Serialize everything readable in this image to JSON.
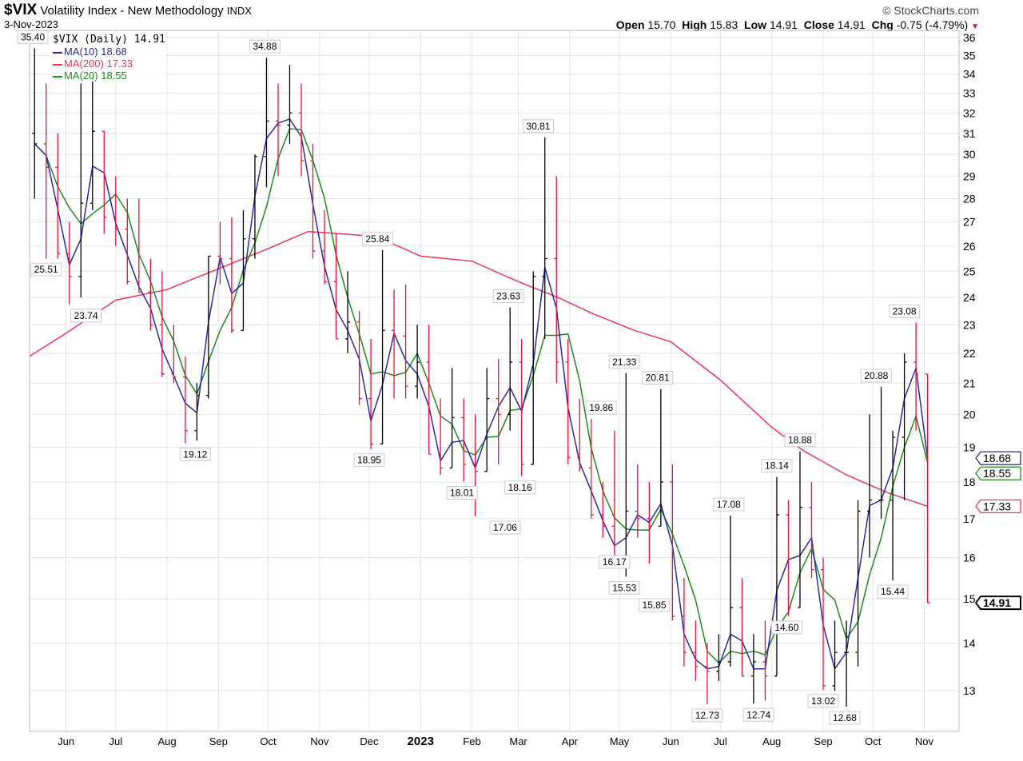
{
  "header": {
    "symbol": "$VIX",
    "name": "Volatility Index - New Methodology",
    "exchange": "INDX",
    "date": "3-Nov-2023",
    "copyright": "© StockCharts.com"
  },
  "quote": {
    "open_label": "Open",
    "open": "15.70",
    "high_label": "High",
    "high": "15.83",
    "low_label": "Low",
    "low": "14.91",
    "close_label": "Close",
    "close": "14.91",
    "chg_label": "Chg",
    "chg": "-0.75 (-4.79%)",
    "direction": "down"
  },
  "legend": {
    "main": "$VIX (Daily) 14.91",
    "ma10": "MA(10) 18.68",
    "ma200": "MA(200) 17.33",
    "ma20": "MA(20) 18.55"
  },
  "colors": {
    "up": "#000000",
    "down": "#e8103e",
    "ma10": "#2a2aa8",
    "ma200": "#f0345a",
    "ma20": "#1e8a1e",
    "grid": "#e4e4e4"
  },
  "chart_data": {
    "type": "ohlc-bar",
    "yscale": "log",
    "ylim": [
      12.2,
      36.4
    ],
    "xlim": [
      "2022-05-10",
      "2023-11-22"
    ],
    "grid": true,
    "yticks": [
      13,
      14,
      15,
      16,
      17,
      18,
      19,
      20,
      21,
      22,
      23,
      24,
      25,
      26,
      27,
      28,
      29,
      30,
      31,
      32,
      33,
      34,
      35,
      36
    ],
    "xticks": [
      {
        "label": "Jun",
        "date": "2022-06-01"
      },
      {
        "label": "Jul",
        "date": "2022-07-01"
      },
      {
        "label": "Aug",
        "date": "2022-08-01"
      },
      {
        "label": "Sep",
        "date": "2022-09-01"
      },
      {
        "label": "Oct",
        "date": "2022-10-01"
      },
      {
        "label": "Nov",
        "date": "2022-11-01"
      },
      {
        "label": "Dec",
        "date": "2022-12-01"
      },
      {
        "label": "2023",
        "date": "2023-01-01",
        "bold": true
      },
      {
        "label": "Feb",
        "date": "2023-02-01"
      },
      {
        "label": "Mar",
        "date": "2023-03-01"
      },
      {
        "label": "Apr",
        "date": "2023-04-01"
      },
      {
        "label": "May",
        "date": "2023-05-01"
      },
      {
        "label": "Jun",
        "date": "2023-06-01"
      },
      {
        "label": "Jul",
        "date": "2023-07-01"
      },
      {
        "label": "Aug",
        "date": "2023-08-01"
      },
      {
        "label": "Sep",
        "date": "2023-09-01"
      },
      {
        "label": "Oct",
        "date": "2023-10-01"
      },
      {
        "label": "Nov",
        "date": "2023-11-01"
      }
    ],
    "bars_columns": [
      "date",
      "open",
      "high",
      "low",
      "close"
    ],
    "bars": [
      [
        "2022-05-13",
        31.0,
        35.4,
        28.0,
        30.5
      ],
      [
        "2022-05-20",
        30.5,
        33.5,
        25.5,
        29.4
      ],
      [
        "2022-05-27",
        29.4,
        31.0,
        25.5,
        25.7
      ],
      [
        "2022-06-03",
        25.7,
        27.0,
        23.74,
        24.8
      ],
      [
        "2022-06-10",
        24.8,
        33.5,
        24.0,
        27.8
      ],
      [
        "2022-06-17",
        27.8,
        34.0,
        27.5,
        31.1
      ],
      [
        "2022-06-24",
        31.1,
        31.0,
        26.5,
        27.2
      ],
      [
        "2022-07-01",
        27.2,
        29.0,
        26.0,
        26.7
      ],
      [
        "2022-07-08",
        26.7,
        28.0,
        24.5,
        24.6
      ],
      [
        "2022-07-15",
        24.6,
        28.0,
        24.2,
        24.2
      ],
      [
        "2022-07-22",
        24.2,
        25.5,
        22.8,
        23.0
      ],
      [
        "2022-07-29",
        23.0,
        25.0,
        21.2,
        21.3
      ],
      [
        "2022-08-05",
        21.3,
        23.0,
        21.0,
        21.2
      ],
      [
        "2022-08-12",
        21.2,
        21.9,
        19.12,
        19.5
      ],
      [
        "2022-08-19",
        19.5,
        21.0,
        19.2,
        20.6
      ],
      [
        "2022-08-26",
        20.6,
        25.6,
        20.5,
        25.6
      ],
      [
        "2022-09-02",
        25.6,
        27.0,
        24.5,
        25.5
      ],
      [
        "2022-09-09",
        25.5,
        27.2,
        22.7,
        22.8
      ],
      [
        "2022-09-16",
        22.8,
        27.5,
        23.0,
        26.3
      ],
      [
        "2022-09-23",
        26.3,
        30.0,
        25.5,
        29.9
      ],
      [
        "2022-09-30",
        29.9,
        34.88,
        28.5,
        31.6
      ],
      [
        "2022-10-07",
        31.6,
        33.5,
        29.0,
        31.4
      ],
      [
        "2022-10-14",
        31.4,
        34.5,
        30.5,
        32.0
      ],
      [
        "2022-10-21",
        32.0,
        33.5,
        29.0,
        29.7
      ],
      [
        "2022-10-28",
        29.7,
        30.5,
        25.5,
        25.8
      ],
      [
        "2022-11-04",
        25.8,
        27.5,
        24.5,
        24.6
      ],
      [
        "2022-11-11",
        24.6,
        26.5,
        22.5,
        22.5
      ],
      [
        "2022-11-18",
        22.5,
        25.0,
        22.0,
        23.1
      ],
      [
        "2022-11-25",
        23.1,
        23.5,
        20.3,
        20.5
      ],
      [
        "2022-12-02",
        20.5,
        22.5,
        18.95,
        19.1
      ],
      [
        "2022-12-09",
        19.1,
        25.84,
        19.5,
        22.8
      ],
      [
        "2022-12-16",
        22.8,
        24.3,
        20.5,
        22.6
      ],
      [
        "2022-12-23",
        22.6,
        24.5,
        20.5,
        20.9
      ],
      [
        "2022-12-30",
        20.9,
        23.0,
        20.5,
        21.7
      ],
      [
        "2023-01-06",
        21.7,
        23.0,
        18.8,
        18.8
      ],
      [
        "2023-01-13",
        18.8,
        20.5,
        18.2,
        18.4
      ],
      [
        "2023-01-20",
        18.4,
        21.5,
        18.5,
        19.9
      ],
      [
        "2023-01-27",
        19.9,
        20.5,
        18.01,
        18.5
      ],
      [
        "2023-02-03",
        18.5,
        20.0,
        17.06,
        18.3
      ],
      [
        "2023-02-10",
        18.3,
        21.5,
        18.5,
        20.5
      ],
      [
        "2023-02-17",
        20.5,
        21.8,
        18.5,
        20.0
      ],
      [
        "2023-02-24",
        20.0,
        23.63,
        19.5,
        21.7
      ],
      [
        "2023-03-03",
        21.7,
        22.5,
        18.16,
        18.5
      ],
      [
        "2023-03-10",
        18.5,
        25.0,
        18.5,
        24.8
      ],
      [
        "2023-03-17",
        24.8,
        30.81,
        22.5,
        25.5
      ],
      [
        "2023-03-24",
        25.5,
        29.0,
        21.0,
        21.7
      ],
      [
        "2023-03-31",
        21.7,
        22.5,
        18.5,
        18.7
      ],
      [
        "2023-04-07",
        18.7,
        20.5,
        18.3,
        18.4
      ],
      [
        "2023-04-14",
        18.4,
        19.86,
        17.0,
        17.1
      ],
      [
        "2023-04-21",
        17.1,
        18.0,
        16.5,
        16.8
      ],
      [
        "2023-04-28",
        16.8,
        19.5,
        16.17,
        15.8
      ],
      [
        "2023-05-05",
        15.8,
        21.33,
        15.53,
        17.2
      ],
      [
        "2023-05-12",
        17.2,
        18.5,
        16.5,
        17.0
      ],
      [
        "2023-05-19",
        17.0,
        18.0,
        15.85,
        16.8
      ],
      [
        "2023-05-26",
        16.8,
        20.81,
        17.0,
        18.0
      ],
      [
        "2023-06-02",
        18.0,
        18.5,
        14.5,
        14.6
      ],
      [
        "2023-06-09",
        14.6,
        15.5,
        13.5,
        13.8
      ],
      [
        "2023-06-16",
        13.8,
        14.5,
        13.2,
        13.5
      ],
      [
        "2023-06-23",
        13.5,
        14.0,
        12.73,
        13.4
      ],
      [
        "2023-06-30",
        13.4,
        14.2,
        13.2,
        13.6
      ],
      [
        "2023-07-07",
        13.6,
        17.08,
        13.5,
        14.8
      ],
      [
        "2023-07-14",
        14.8,
        15.5,
        13.3,
        13.3
      ],
      [
        "2023-07-21",
        13.3,
        14.2,
        12.74,
        13.6
      ],
      [
        "2023-07-28",
        13.6,
        14.5,
        12.8,
        13.3
      ],
      [
        "2023-08-04",
        13.3,
        18.14,
        14.0,
        17.1
      ],
      [
        "2023-08-11",
        17.1,
        17.5,
        14.6,
        14.8
      ],
      [
        "2023-08-18",
        14.8,
        18.88,
        15.0,
        17.3
      ],
      [
        "2023-08-25",
        17.3,
        18.0,
        15.5,
        15.7
      ],
      [
        "2023-09-01",
        15.7,
        16.0,
        13.02,
        13.1
      ],
      [
        "2023-09-08",
        13.1,
        14.5,
        13.0,
        13.8
      ],
      [
        "2023-09-15",
        13.8,
        14.5,
        12.68,
        13.8
      ],
      [
        "2023-09-22",
        13.8,
        17.5,
        13.5,
        17.2
      ],
      [
        "2023-09-29",
        17.2,
        20.0,
        16.0,
        17.5
      ],
      [
        "2023-10-06",
        17.5,
        20.88,
        17.0,
        17.5
      ],
      [
        "2023-10-13",
        17.5,
        19.5,
        15.44,
        19.3
      ],
      [
        "2023-10-20",
        19.3,
        22.0,
        17.5,
        21.7
      ],
      [
        "2023-10-27",
        21.7,
        23.08,
        19.5,
        21.3
      ],
      [
        "2023-11-03",
        21.3,
        20.0,
        14.91,
        14.91
      ]
    ],
    "ma200": [
      [
        "2022-05-10",
        21.9
      ],
      [
        "2022-06-01",
        22.7
      ],
      [
        "2022-07-01",
        23.9
      ],
      [
        "2022-08-01",
        24.3
      ],
      [
        "2022-09-01",
        25.1
      ],
      [
        "2022-10-01",
        25.9
      ],
      [
        "2022-10-25",
        26.6
      ],
      [
        "2022-11-15",
        26.5
      ],
      [
        "2022-12-05",
        26.4
      ],
      [
        "2023-01-01",
        25.6
      ],
      [
        "2023-02-01",
        25.4
      ],
      [
        "2023-03-01",
        24.6
      ],
      [
        "2023-03-25",
        24.0
      ],
      [
        "2023-04-15",
        23.4
      ],
      [
        "2023-05-10",
        22.8
      ],
      [
        "2023-06-01",
        22.4
      ],
      [
        "2023-07-01",
        21.1
      ],
      [
        "2023-08-01",
        19.6
      ],
      [
        "2023-08-20",
        18.9
      ],
      [
        "2023-09-15",
        18.2
      ],
      [
        "2023-10-10",
        17.7
      ],
      [
        "2023-11-03",
        17.33
      ]
    ],
    "ma10_last": 18.68,
    "ma20_last": 18.55,
    "ma200_last": 17.33,
    "close_last": 14.91,
    "annotations": [
      [
        "2022-05-12",
        35.4,
        "high"
      ],
      [
        "2022-05-20",
        25.51,
        "low"
      ],
      [
        "2022-06-13",
        23.74,
        "low"
      ],
      [
        "2022-08-18",
        19.12,
        "low"
      ],
      [
        "2022-09-29",
        34.88,
        "high"
      ],
      [
        "2022-12-06",
        25.84,
        "high"
      ],
      [
        "2022-12-01",
        18.95,
        "low"
      ],
      [
        "2023-01-26",
        18.01,
        "low"
      ],
      [
        "2023-02-21",
        17.06,
        "low"
      ],
      [
        "2023-03-02",
        18.16,
        "low"
      ],
      [
        "2023-03-13",
        30.81,
        "high"
      ],
      [
        "2023-02-23",
        23.63,
        "high"
      ],
      [
        "2023-04-28",
        16.17,
        "low"
      ],
      [
        "2023-05-04",
        15.53,
        "low"
      ],
      [
        "2023-05-04",
        21.33,
        "high"
      ],
      [
        "2023-04-20",
        19.86,
        "high"
      ],
      [
        "2023-05-22",
        15.85,
        "low"
      ],
      [
        "2023-05-24",
        20.81,
        "high"
      ],
      [
        "2023-06-23",
        12.73,
        "low"
      ],
      [
        "2023-07-06",
        17.08,
        "high"
      ],
      [
        "2023-07-24",
        12.74,
        "low"
      ],
      [
        "2023-08-04",
        18.14,
        "high"
      ],
      [
        "2023-08-18",
        18.88,
        "high"
      ],
      [
        "2023-08-10",
        14.6,
        "low"
      ],
      [
        "2023-09-01",
        13.02,
        "low"
      ],
      [
        "2023-09-14",
        12.68,
        "low"
      ],
      [
        "2023-10-03",
        20.88,
        "high"
      ],
      [
        "2023-10-13",
        15.44,
        "low"
      ],
      [
        "2023-10-20",
        23.08,
        "high"
      ]
    ]
  }
}
